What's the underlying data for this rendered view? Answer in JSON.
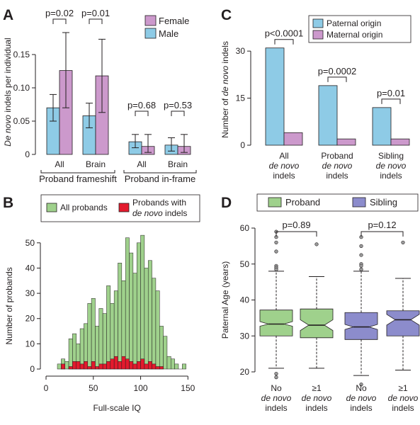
{
  "colors": {
    "male_blue": "#8ecbe6",
    "female_purple": "#cc99cc",
    "paternal_blue": "#8ecbe6",
    "maternal_purple": "#cc99cc",
    "all_green": "#9fd18c",
    "denovo_red": "#e31a2d",
    "proband_green": "#9fd18c",
    "sibling_purple": "#8c8ccc",
    "axis": "#231f20"
  },
  "chart_data": [
    {
      "panel": "A",
      "type": "bar",
      "ylabel_italic": "De novo",
      "ylabel_rest": " indels per individual",
      "ylim": [
        0,
        0.2
      ],
      "yticks": [
        "0",
        "0.05",
        "0.10",
        "0.15"
      ],
      "ytick_values": [
        0,
        0.05,
        0.1,
        0.15
      ],
      "legend": [
        "Female",
        "Male"
      ],
      "groups": [
        {
          "label": "All",
          "male": 0.07,
          "male_err": [
            0.05,
            0.09
          ],
          "female": 0.126,
          "female_err": [
            0.07,
            0.183
          ],
          "pvalue": "p=0.02"
        },
        {
          "label": "Brain",
          "male": 0.058,
          "male_err": [
            0.04,
            0.077
          ],
          "female": 0.118,
          "female_err": [
            0.063,
            0.173
          ],
          "pvalue": "p=0.01"
        },
        {
          "label": "All",
          "male": 0.019,
          "male_err": [
            0.01,
            0.03
          ],
          "female": 0.012,
          "female_err": [
            0.003,
            0.03
          ],
          "pvalue": "p=0.68"
        },
        {
          "label": "Brain",
          "male": 0.014,
          "male_err": [
            0.005,
            0.025
          ],
          "female": 0.012,
          "female_err": [
            0.003,
            0.03
          ],
          "pvalue": "p=0.53"
        }
      ],
      "group_labels": [
        "Proband frameshift",
        "Proband in-frame"
      ]
    },
    {
      "panel": "C",
      "type": "bar",
      "ylabel_prefix": "Number of ",
      "ylabel_italic": "de novo",
      "ylabel_suffix": " indels",
      "ylim": [
        0,
        35
      ],
      "yticks": [
        "0",
        "15",
        "30"
      ],
      "ytick_values": [
        0,
        15,
        30
      ],
      "legend": [
        "Paternal origin",
        "Maternal origin"
      ],
      "categories": [
        {
          "line1": "All",
          "line2": "de novo",
          "line3": "indels",
          "paternal": 31,
          "maternal": 4,
          "pvalue": "p<0.0001"
        },
        {
          "line1": "Proband",
          "line2": "de novo",
          "line3": "indels",
          "paternal": 19,
          "maternal": 2,
          "pvalue": "p=0.0002"
        },
        {
          "line1": "Sibling",
          "line2": "de novo",
          "line3": "indels",
          "paternal": 12,
          "maternal": 2,
          "pvalue": "p=0.01"
        }
      ]
    },
    {
      "panel": "B",
      "type": "bar",
      "xlabel": "Full-scale IQ",
      "ylabel": "Number of probands",
      "xlim": [
        0,
        155
      ],
      "ylim": [
        0,
        55
      ],
      "xticks": [
        "0",
        "50",
        "100",
        "150"
      ],
      "xtick_values": [
        0,
        50,
        100,
        150
      ],
      "yticks": [
        "0",
        "10",
        "20",
        "30",
        "40",
        "50"
      ],
      "ytick_values": [
        0,
        10,
        20,
        30,
        40,
        50
      ],
      "bin_start": 12,
      "bin_width": 4,
      "legend_all": "All probands",
      "legend_denovo_line1": "Probands with",
      "legend_denovo_italic": "de novo",
      "legend_denovo_rest": " indels",
      "all_probands": [
        2,
        4,
        3,
        12,
        14,
        10,
        16,
        18,
        26,
        28,
        17,
        24,
        22,
        33,
        26,
        31,
        42,
        35,
        52,
        46,
        38,
        50,
        53,
        40,
        43,
        36,
        31,
        17,
        13,
        5,
        4,
        2,
        0,
        2
      ],
      "with_denovo": [
        0,
        2,
        0,
        1,
        3,
        3,
        2,
        3,
        1,
        3,
        1,
        2,
        2,
        3,
        4,
        5,
        3,
        5,
        4,
        3,
        2,
        3,
        4,
        2,
        3,
        2,
        1,
        1,
        0,
        0,
        0,
        0,
        0,
        0
      ]
    },
    {
      "panel": "D",
      "type": "box",
      "ylabel": "Paternal Age (years)",
      "ylim": [
        18,
        62
      ],
      "yticks": [
        "20",
        "30",
        "40",
        "50",
        "60"
      ],
      "ytick_values": [
        20,
        30,
        40,
        50,
        60
      ],
      "legend": [
        "Proband",
        "Sibling"
      ],
      "boxes": [
        {
          "group": "Proband",
          "whisker_low": 21,
          "q1": 30,
          "median": 33.3,
          "q3": 37.2,
          "whisker_high": 48,
          "notch_low": 32.7,
          "notch_high": 34,
          "outliers": [
            59,
            57.5,
            56,
            53.5,
            49.5,
            49,
            48.5,
            19.5,
            18.5
          ]
        },
        {
          "group": "Proband",
          "whisker_low": 21,
          "q1": 29.5,
          "median": 33,
          "q3": 37.5,
          "whisker_high": 46.5,
          "notch_low": 31.5,
          "notch_high": 34.5,
          "outliers": [
            55.5
          ]
        },
        {
          "group": "Sibling",
          "whisker_low": 19,
          "q1": 29,
          "median": 32.5,
          "q3": 36.5,
          "whisker_high": 48,
          "notch_low": 31.8,
          "notch_high": 33.2,
          "outliers": [
            57.5,
            55,
            52.5,
            50,
            49.5,
            48.5,
            16.5
          ]
        },
        {
          "group": "Sibling",
          "whisker_low": 20.5,
          "q1": 30,
          "median": 34.5,
          "q3": 37,
          "whisker_high": 46,
          "notch_low": 33,
          "notch_high": 36,
          "outliers": [
            56
          ]
        }
      ],
      "pvalues": [
        "p=0.89",
        "p=0.12"
      ],
      "xlabels": [
        {
          "line1": "No",
          "line2": "de novo",
          "line3": "indels"
        },
        {
          "line1": "≥1",
          "line2": "de novo",
          "line3": "indels"
        },
        {
          "line1": "No",
          "line2": "de novo",
          "line3": "indels"
        },
        {
          "line1": "≥1",
          "line2": "de novo",
          "line3": "indels"
        }
      ]
    }
  ],
  "panels": {
    "a": "A",
    "b": "B",
    "c": "C",
    "d": "D"
  }
}
